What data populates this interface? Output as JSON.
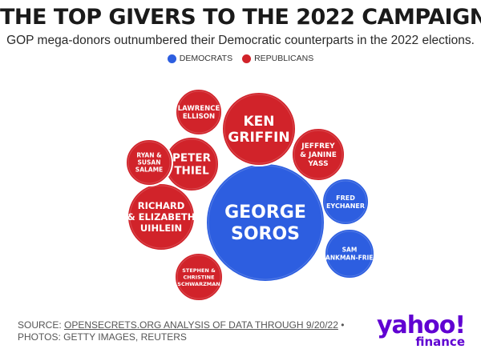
{
  "header": {
    "title": "THE TOP GIVERS TO THE 2022 CAMPAIGN",
    "subtitle": "GOP mega-donors outnumbered their Democratic counterparts in the 2022 elections."
  },
  "legend": {
    "democrats_label": "DEMOCRATS",
    "republicans_label": "REPUBLICANS"
  },
  "colors": {
    "democrat": "#2d5ee0",
    "republican": "#d1232a"
  },
  "chart_data": {
    "type": "bubble",
    "title": "THE TOP GIVERS TO THE 2022 CAMPAIGN",
    "legend_position": "top-center",
    "series": [
      {
        "name": "DEMOCRATS"
      },
      {
        "name": "REPUBLICANS"
      }
    ],
    "bubbles": [
      {
        "id": "soros",
        "lines": [
          "GEORGE",
          "SOROS"
        ],
        "party": "DEMOCRATS",
        "rank_size": 1.0
      },
      {
        "id": "griffin",
        "lines": [
          "KEN",
          "GRIFFIN"
        ],
        "party": "REPUBLICANS",
        "rank_size": 0.54
      },
      {
        "id": "uihlein",
        "lines": [
          "RICHARD",
          "& ELIZABETH",
          "UIHLEIN"
        ],
        "party": "REPUBLICANS",
        "rank_size": 0.5
      },
      {
        "id": "thiel",
        "lines": [
          "PETER",
          "THIEL"
        ],
        "party": "REPUBLICANS",
        "rank_size": 0.42
      },
      {
        "id": "yass",
        "lines": [
          "JEFFREY",
          "& JANINE",
          "YASS"
        ],
        "party": "REPUBLICANS",
        "rank_size": 0.4
      },
      {
        "id": "bankman",
        "lines": [
          "SAM",
          "BANKMAN-FRIED"
        ],
        "party": "DEMOCRATS",
        "rank_size": 0.39
      },
      {
        "id": "ellison",
        "lines": [
          "LAWRENCE",
          "ELLISON"
        ],
        "party": "REPUBLICANS",
        "rank_size": 0.35
      },
      {
        "id": "salame",
        "lines": [
          "RYAN &",
          "SUSAN",
          "SALAME"
        ],
        "party": "REPUBLICANS",
        "rank_size": 0.34
      },
      {
        "id": "eychaner",
        "lines": [
          "FRED",
          "EYCHANER"
        ],
        "party": "DEMOCRATS",
        "rank_size": 0.34
      },
      {
        "id": "schwarzman",
        "lines": [
          "STEPHEN &",
          "CHRISTINE",
          "SCHWARZMAN"
        ],
        "party": "REPUBLICANS",
        "rank_size": 0.34
      }
    ]
  },
  "footer": {
    "source_prefix": "SOURCE: ",
    "source_link": "OPENSECRETS.ORG ANALYSIS OF DATA THROUGH 9/20/22",
    "source_suffix": " •",
    "photos": "PHOTOS: GETTY IMAGES, REUTERS"
  },
  "logo": {
    "main": "yahoo!",
    "sub": "finance",
    "color": "#6001d2"
  }
}
